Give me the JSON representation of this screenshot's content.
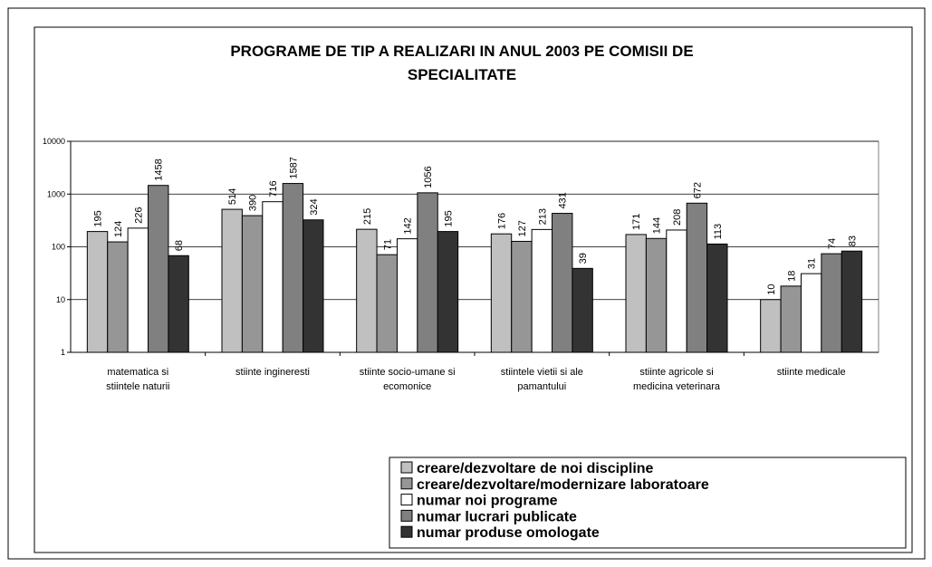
{
  "chart_data": {
    "type": "bar",
    "title": [
      "PROGRAME DE TIP A REALIZARI IN ANUL 2003 PE COMISII DE",
      "SPECIALITATE"
    ],
    "categories": [
      [
        "matematica si",
        "stiintele naturii"
      ],
      [
        "stiinte ingineresti"
      ],
      [
        "stiinte socio-umane si",
        "ecomonice"
      ],
      [
        "stiintele vietii si ale",
        "pamantului"
      ],
      [
        "stiinte agricole si",
        "medicina veterinara"
      ],
      [
        "stiinte medicale"
      ]
    ],
    "series": [
      {
        "name": "creare/dezvoltare de noi discipline",
        "color": "#c0c0c0",
        "values": [
          195,
          514,
          215,
          176,
          171,
          10
        ]
      },
      {
        "name": "creare/dezvoltare/modernizare laboratoare",
        "color": "#969696",
        "values": [
          124,
          390,
          71,
          127,
          144,
          18
        ]
      },
      {
        "name": "numar noi programe",
        "color": "#ffffff",
        "values": [
          226,
          716,
          142,
          213,
          208,
          31
        ]
      },
      {
        "name": "numar lucrari publicate",
        "color": "#808080",
        "values": [
          1458,
          1587,
          1056,
          431,
          672,
          74
        ]
      },
      {
        "name": "numar produse omologate",
        "color": "#333333",
        "values": [
          68,
          324,
          195,
          39,
          113,
          83
        ]
      }
    ],
    "ylim": [
      1,
      10000
    ],
    "yticks": [
      1,
      10,
      100,
      1000,
      10000
    ],
    "log_scale": true,
    "grid": true,
    "legend": "bottom-right"
  }
}
